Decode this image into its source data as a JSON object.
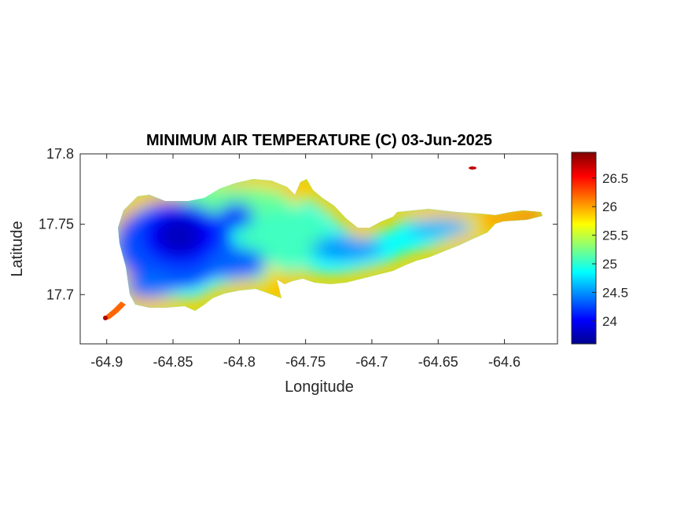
{
  "chart_data": {
    "type": "heatmap",
    "title": "MINIMUM AIR TEMPERATURE (C) 03-Jun-2025",
    "xlabel": "Longitude",
    "ylabel": "Latitude",
    "xlim": [
      -64.92,
      -64.56
    ],
    "ylim": [
      17.665,
      17.8
    ],
    "xticks": [
      -64.9,
      -64.85,
      -64.8,
      -64.75,
      -64.7,
      -64.65,
      -64.6
    ],
    "xtick_labels": [
      "-64.9",
      "-64.85",
      "-64.8",
      "-64.75",
      "-64.7",
      "-64.65",
      "-64.6"
    ],
    "yticks": [
      17.7,
      17.75,
      17.8
    ],
    "ytick_labels": [
      "17.7",
      "17.75",
      "17.8"
    ],
    "colorbar": {
      "colormap": "jet",
      "range": [
        23.6,
        26.95
      ],
      "ticks": [
        24,
        24.5,
        25,
        25.5,
        26,
        26.5
      ],
      "tick_labels": [
        "24",
        "24.5",
        "25",
        "25.5",
        "26",
        "26.5"
      ]
    },
    "grid": false
  },
  "colors": {
    "axis": "#262626",
    "background": "#ffffff",
    "jet_stops": [
      "#00008f",
      "#0000ff",
      "#00ffff",
      "#ffff00",
      "#ff0000",
      "#800000"
    ]
  }
}
